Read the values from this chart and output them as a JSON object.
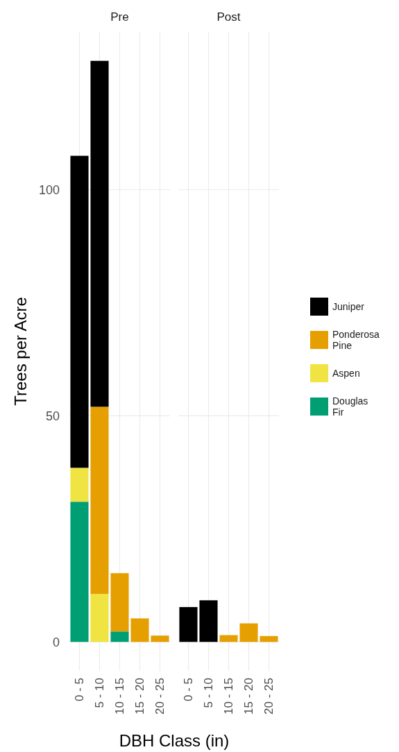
{
  "chart_data": [
    {
      "type": "bar",
      "title": "Pre",
      "xlabel": "DBH Class (in)",
      "ylabel": "Trees per Acre",
      "categories": [
        "0 - 5",
        "5 - 10",
        "10 - 15",
        "15 - 20",
        "20 - 25"
      ],
      "stacked": true,
      "series": [
        {
          "name": "Douglas Fir",
          "color": "#009e73",
          "values": [
            31,
            0,
            2.3,
            0,
            0
          ]
        },
        {
          "name": "Aspen",
          "color": "#f0e442",
          "values": [
            7.5,
            10.6,
            0,
            0,
            0
          ]
        },
        {
          "name": "Ponderosa Pine",
          "color": "#e69f00",
          "values": [
            0,
            41.4,
            12.9,
            5.2,
            1.4
          ]
        },
        {
          "name": "Juniper",
          "color": "#000000",
          "values": [
            69,
            76.5,
            0,
            0,
            0
          ]
        }
      ],
      "ylim": [
        -6.4,
        134.9
      ],
      "yticks": [
        0,
        50,
        100
      ],
      "grid": true,
      "legend": "right"
    },
    {
      "type": "bar",
      "title": "Post",
      "categories": [
        "0 - 5",
        "5 - 10",
        "10 - 15",
        "15 - 20",
        "20 - 25"
      ],
      "stacked": true,
      "series": [
        {
          "color": "#e69f00",
          "values": [
            0,
            0,
            1.5,
            4.1,
            1.3
          ]
        },
        {
          "color": "#000000",
          "values": [
            7.7,
            9.2,
            0,
            0,
            0
          ]
        }
      ],
      "ylim": [
        -6.4,
        134.9
      ],
      "yticks": [
        0,
        50,
        100
      ],
      "grid": true,
      "tick_labels": "x"
    }
  ]
}
